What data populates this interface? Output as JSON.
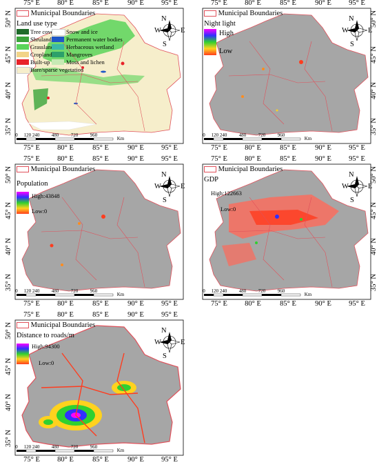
{
  "common": {
    "boundary_label": "Municipal Boundaries",
    "lon_ticks": [
      "75° E",
      "80° E",
      "85° E",
      "90° E",
      "95° E"
    ],
    "lat_ticks": [
      "50° N",
      "45° N",
      "40° N",
      "35° N"
    ],
    "scale_labels": [
      "0",
      "120 240",
      "480",
      "720",
      "960"
    ],
    "scale_unit": "Km",
    "compass": {
      "n": "N",
      "s": "S",
      "e": "E",
      "w": "W"
    }
  },
  "panels": [
    {
      "legend_title": "Land use type",
      "classes": [
        {
          "label": "Tree cover",
          "color": "#1e6b2a"
        },
        {
          "label": "Shruland",
          "color": "#3aa43a"
        },
        {
          "label": "Grassland",
          "color": "#5ad45a"
        },
        {
          "label": "Cropland",
          "color": "#f2d488"
        },
        {
          "label": "Built-up",
          "color": "#e8232a"
        },
        {
          "label": "Bare/sparse vegetation",
          "color": "#f6eecb"
        },
        {
          "label": "Snow and ice",
          "color": "#ffffff"
        },
        {
          "label": "Permanent water bodies",
          "color": "#1f57c8"
        },
        {
          "label": "Herbaceous wetland",
          "color": "#3bb9a6"
        },
        {
          "label": "Mangroves",
          "color": "#2ca06a"
        },
        {
          "label": "Moss and lichen",
          "color": "#c7e9b4"
        }
      ]
    },
    {
      "legend_title": "Night light",
      "high": "High",
      "low": "Low"
    },
    {
      "legend_title": "Population",
      "high": "High:43848",
      "low": "Low:0"
    },
    {
      "legend_title": "GDP",
      "high": "High:122663",
      "low": "Low:0"
    },
    {
      "legend_title": "Distance to roads/m",
      "high": "High:94300",
      "low": "Low:0"
    }
  ],
  "colors": {
    "region_gray": "#a6a6a6",
    "boundary": "#e0505a",
    "hot": "#ff3c1e",
    "bare": "#f6eecb"
  }
}
